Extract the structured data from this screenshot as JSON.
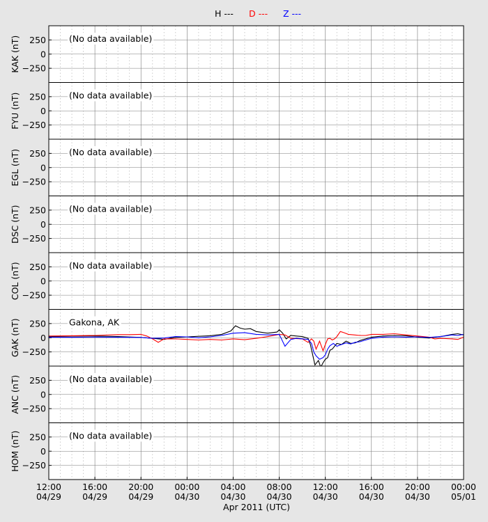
{
  "chart_data": {
    "type": "line",
    "xlabel": "Apr 2011 (UTC)",
    "x_ticks": [
      {
        "hour": 0,
        "time": "12:00",
        "date": "04/29"
      },
      {
        "hour": 4,
        "time": "16:00",
        "date": "04/29"
      },
      {
        "hour": 8,
        "time": "20:00",
        "date": "04/29"
      },
      {
        "hour": 12,
        "time": "00:00",
        "date": "04/30"
      },
      {
        "hour": 16,
        "time": "04:00",
        "date": "04/30"
      },
      {
        "hour": 20,
        "time": "08:00",
        "date": "04/30"
      },
      {
        "hour": 24,
        "time": "12:00",
        "date": "04/30"
      },
      {
        "hour": 28,
        "time": "16:00",
        "date": "04/30"
      },
      {
        "hour": 32,
        "time": "20:00",
        "date": "04/30"
      },
      {
        "hour": 36,
        "time": "00:00",
        "date": "05/01"
      }
    ],
    "xlim": [
      0,
      36
    ],
    "ylim": [
      -500,
      500
    ],
    "y_ticks": [
      250,
      0,
      -250
    ],
    "grid": true,
    "legend": [
      {
        "label": "H ---",
        "color": "#000000"
      },
      {
        "label": "D ---",
        "color": "#ff0000"
      },
      {
        "label": "Z ---",
        "color": "#0000ff"
      }
    ],
    "series_colors": {
      "H": "#000000",
      "D": "#ff0000",
      "Z": "#0000ff"
    },
    "panels": [
      {
        "ylabel": "KAK (nT)",
        "note": "(No data available)",
        "series": []
      },
      {
        "ylabel": "FYU (nT)",
        "note": "(No data available)",
        "series": []
      },
      {
        "ylabel": "EGL (nT)",
        "note": "(No data available)",
        "series": []
      },
      {
        "ylabel": "DSC (nT)",
        "note": "(No data available)",
        "series": []
      },
      {
        "ylabel": "COL (nT)",
        "note": "(No data available)",
        "series": []
      },
      {
        "ylabel": "GAK (nT)",
        "note": "Gakona, AK",
        "series": [
          {
            "name": "H",
            "points": [
              [
                0,
                20
              ],
              [
                2,
                28
              ],
              [
                4,
                30
              ],
              [
                6,
                22
              ],
              [
                8,
                5
              ],
              [
                9,
                -10
              ],
              [
                10,
                -30
              ],
              [
                11,
                5
              ],
              [
                12,
                15
              ],
              [
                13,
                25
              ],
              [
                14,
                35
              ],
              [
                15,
                60
              ],
              [
                15.8,
                120
              ],
              [
                16.2,
                210
              ],
              [
                16.6,
                170
              ],
              [
                17,
                150
              ],
              [
                17.5,
                160
              ],
              [
                18,
                110
              ],
              [
                19,
                80
              ],
              [
                19.8,
                100
              ],
              [
                20,
                140
              ],
              [
                20.3,
                80
              ],
              [
                20.6,
                -20
              ],
              [
                21,
                40
              ],
              [
                21.5,
                30
              ],
              [
                22,
                20
              ],
              [
                22.5,
                -10
              ],
              [
                22.7,
                -120
              ],
              [
                22.9,
                -300
              ],
              [
                23.1,
                -480
              ],
              [
                23.4,
                -400
              ],
              [
                23.6,
                -520
              ],
              [
                23.8,
                -440
              ],
              [
                24,
                -380
              ],
              [
                24.2,
                -350
              ],
              [
                24.4,
                -220
              ],
              [
                24.6,
                -200
              ],
              [
                25,
                -100
              ],
              [
                25.4,
                -120
              ],
              [
                25.8,
                -60
              ],
              [
                26.2,
                -100
              ],
              [
                26.6,
                -90
              ],
              [
                27,
                -50
              ],
              [
                27.5,
                -20
              ],
              [
                28,
                10
              ],
              [
                29,
                30
              ],
              [
                30,
                40
              ],
              [
                31,
                35
              ],
              [
                32,
                10
              ],
              [
                33,
                -5
              ],
              [
                34,
                20
              ],
              [
                35,
                60
              ],
              [
                35.5,
                70
              ],
              [
                36,
                50
              ]
            ]
          },
          {
            "name": "D",
            "points": [
              [
                0,
                30
              ],
              [
                2,
                35
              ],
              [
                4,
                40
              ],
              [
                6,
                55
              ],
              [
                7,
                55
              ],
              [
                8,
                60
              ],
              [
                8.5,
                30
              ],
              [
                9,
                -20
              ],
              [
                9.5,
                -80
              ],
              [
                10,
                -20
              ],
              [
                11,
                -20
              ],
              [
                12,
                -30
              ],
              [
                13,
                -40
              ],
              [
                14,
                -30
              ],
              [
                15,
                -40
              ],
              [
                16,
                -20
              ],
              [
                17,
                -35
              ],
              [
                18,
                -10
              ],
              [
                19,
                20
              ],
              [
                20,
                60
              ],
              [
                20.5,
                50
              ],
              [
                21,
                -10
              ],
              [
                22,
                -20
              ],
              [
                22.5,
                -80
              ],
              [
                22.8,
                -20
              ],
              [
                23,
                -60
              ],
              [
                23.2,
                -200
              ],
              [
                23.5,
                -60
              ],
              [
                23.8,
                -230
              ],
              [
                24,
                -120
              ],
              [
                24.2,
                -20
              ],
              [
                24.4,
                -10
              ],
              [
                24.6,
                -40
              ],
              [
                24.8,
                -20
              ],
              [
                25,
                20
              ],
              [
                25.3,
                110
              ],
              [
                25.6,
                90
              ],
              [
                26,
                60
              ],
              [
                26.5,
                50
              ],
              [
                27,
                40
              ],
              [
                27.5,
                40
              ],
              [
                28,
                60
              ],
              [
                29,
                60
              ],
              [
                30,
                70
              ],
              [
                31,
                50
              ],
              [
                32,
                30
              ],
              [
                33,
                10
              ],
              [
                33.5,
                -20
              ],
              [
                34,
                -10
              ],
              [
                35,
                -20
              ],
              [
                35.5,
                -30
              ],
              [
                36,
                10
              ]
            ]
          },
          {
            "name": "Z",
            "points": [
              [
                0,
                10
              ],
              [
                2,
                8
              ],
              [
                4,
                12
              ],
              [
                6,
                10
              ],
              [
                8,
                5
              ],
              [
                9,
                -10
              ],
              [
                10,
                -5
              ],
              [
                11,
                20
              ],
              [
                12,
                15
              ],
              [
                13,
                0
              ],
              [
                14,
                15
              ],
              [
                15,
                40
              ],
              [
                16,
                80
              ],
              [
                17,
                90
              ],
              [
                18,
                60
              ],
              [
                19,
                50
              ],
              [
                20,
                60
              ],
              [
                20.5,
                -150
              ],
              [
                21,
                -30
              ],
              [
                21.5,
                -10
              ],
              [
                22,
                -20
              ],
              [
                22.5,
                -30
              ],
              [
                22.8,
                -100
              ],
              [
                23,
                -250
              ],
              [
                23.2,
                -320
              ],
              [
                23.5,
                -380
              ],
              [
                23.8,
                -350
              ],
              [
                24,
                -300
              ],
              [
                24.2,
                -200
              ],
              [
                24.4,
                -140
              ],
              [
                24.7,
                -100
              ],
              [
                25,
                -150
              ],
              [
                25.4,
                -120
              ],
              [
                25.8,
                -90
              ],
              [
                26.2,
                -110
              ],
              [
                26.6,
                -80
              ],
              [
                27,
                -70
              ],
              [
                27.5,
                -40
              ],
              [
                28,
                -10
              ],
              [
                29,
                10
              ],
              [
                30,
                15
              ],
              [
                31,
                10
              ],
              [
                32,
                15
              ],
              [
                33,
                5
              ],
              [
                34,
                20
              ],
              [
                35,
                50
              ],
              [
                35.5,
                40
              ],
              [
                36,
                60
              ]
            ]
          }
        ]
      },
      {
        "ylabel": "ANC (nT)",
        "note": "(No data available)",
        "series": []
      },
      {
        "ylabel": "HOM (nT)",
        "note": "(No data available)",
        "series": []
      }
    ]
  }
}
